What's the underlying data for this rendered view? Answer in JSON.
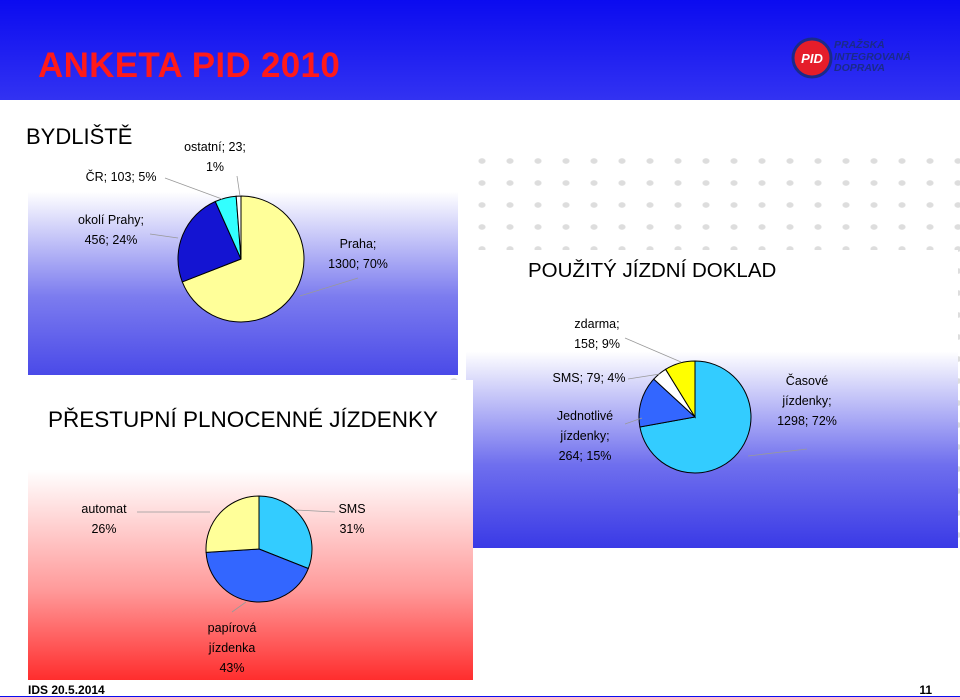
{
  "header": {
    "title": "ANKETA PID 2010"
  },
  "logo": {
    "lines": [
      "PRAŽSKÁ",
      "INTEGROVANÁ",
      "DOPRAVA"
    ],
    "mark": "PID"
  },
  "footer": {
    "left": "IDS 20.5.2014",
    "right": "11"
  },
  "colors": {
    "title": "#ff1a1a",
    "cream": "#ffff99",
    "blue": "#1414d2",
    "cyan": "#33ffff",
    "sky": "#33ccff",
    "royal": "#3366ff",
    "yellow": "#ffff00",
    "lightyellow": "#ffff99"
  },
  "chart_data": [
    {
      "type": "pie",
      "title": "BYDLIŠTĚ",
      "slices": [
        {
          "name": "Praha",
          "value": 1300,
          "percent": 70,
          "label_lines": [
            "Praha;",
            "1300; 70%"
          ],
          "color": "#ffff99"
        },
        {
          "name": "okolí Prahy",
          "value": 456,
          "percent": 24,
          "label_lines": [
            "okolí Prahy;",
            "456; 24%"
          ],
          "color": "#1414d2"
        },
        {
          "name": "ČR",
          "value": 103,
          "percent": 5,
          "label_lines": [
            "ČR; 103; 5%"
          ],
          "color": "#33ffff"
        },
        {
          "name": "ostatní",
          "value": 23,
          "percent": 1,
          "label_lines": [
            "ostatní;   23;",
            "1%"
          ],
          "color": "#ffffff"
        }
      ]
    },
    {
      "type": "pie",
      "title": "POUŽITÝ JÍZDNÍ DOKLAD",
      "slices": [
        {
          "name": "Časové jízdenky",
          "value": 1298,
          "percent": 72,
          "label_lines": [
            "Časové",
            "jízdenky;",
            "1298; 72%"
          ],
          "color": "#33ccff"
        },
        {
          "name": "Jednotlivé jízdenky",
          "value": 264,
          "percent": 15,
          "label_lines": [
            "Jednotlivé",
            "jízdenky;",
            "264; 15%"
          ],
          "color": "#3366ff"
        },
        {
          "name": "SMS",
          "value": 79,
          "percent": 4,
          "label_lines": [
            "SMS; 79; 4%"
          ],
          "color": "#ffffff"
        },
        {
          "name": "zdarma",
          "value": 158,
          "percent": 9,
          "label_lines": [
            "zdarma;",
            "158; 9%"
          ],
          "color": "#ffff00"
        }
      ]
    },
    {
      "type": "pie",
      "title": "PŘESTUPNÍ PLNOCENNÉ JÍZDENKY",
      "slices": [
        {
          "name": "SMS",
          "percent": 31,
          "label_lines": [
            "SMS",
            "31%"
          ],
          "color": "#33ccff"
        },
        {
          "name": "papírová jízdenka",
          "percent": 43,
          "label_lines": [
            "papírová",
            "jízdenka",
            "43%"
          ],
          "color": "#3366ff"
        },
        {
          "name": "automat",
          "percent": 26,
          "label_lines": [
            "automat",
            "26%"
          ],
          "color": "#ffff99"
        }
      ]
    }
  ]
}
